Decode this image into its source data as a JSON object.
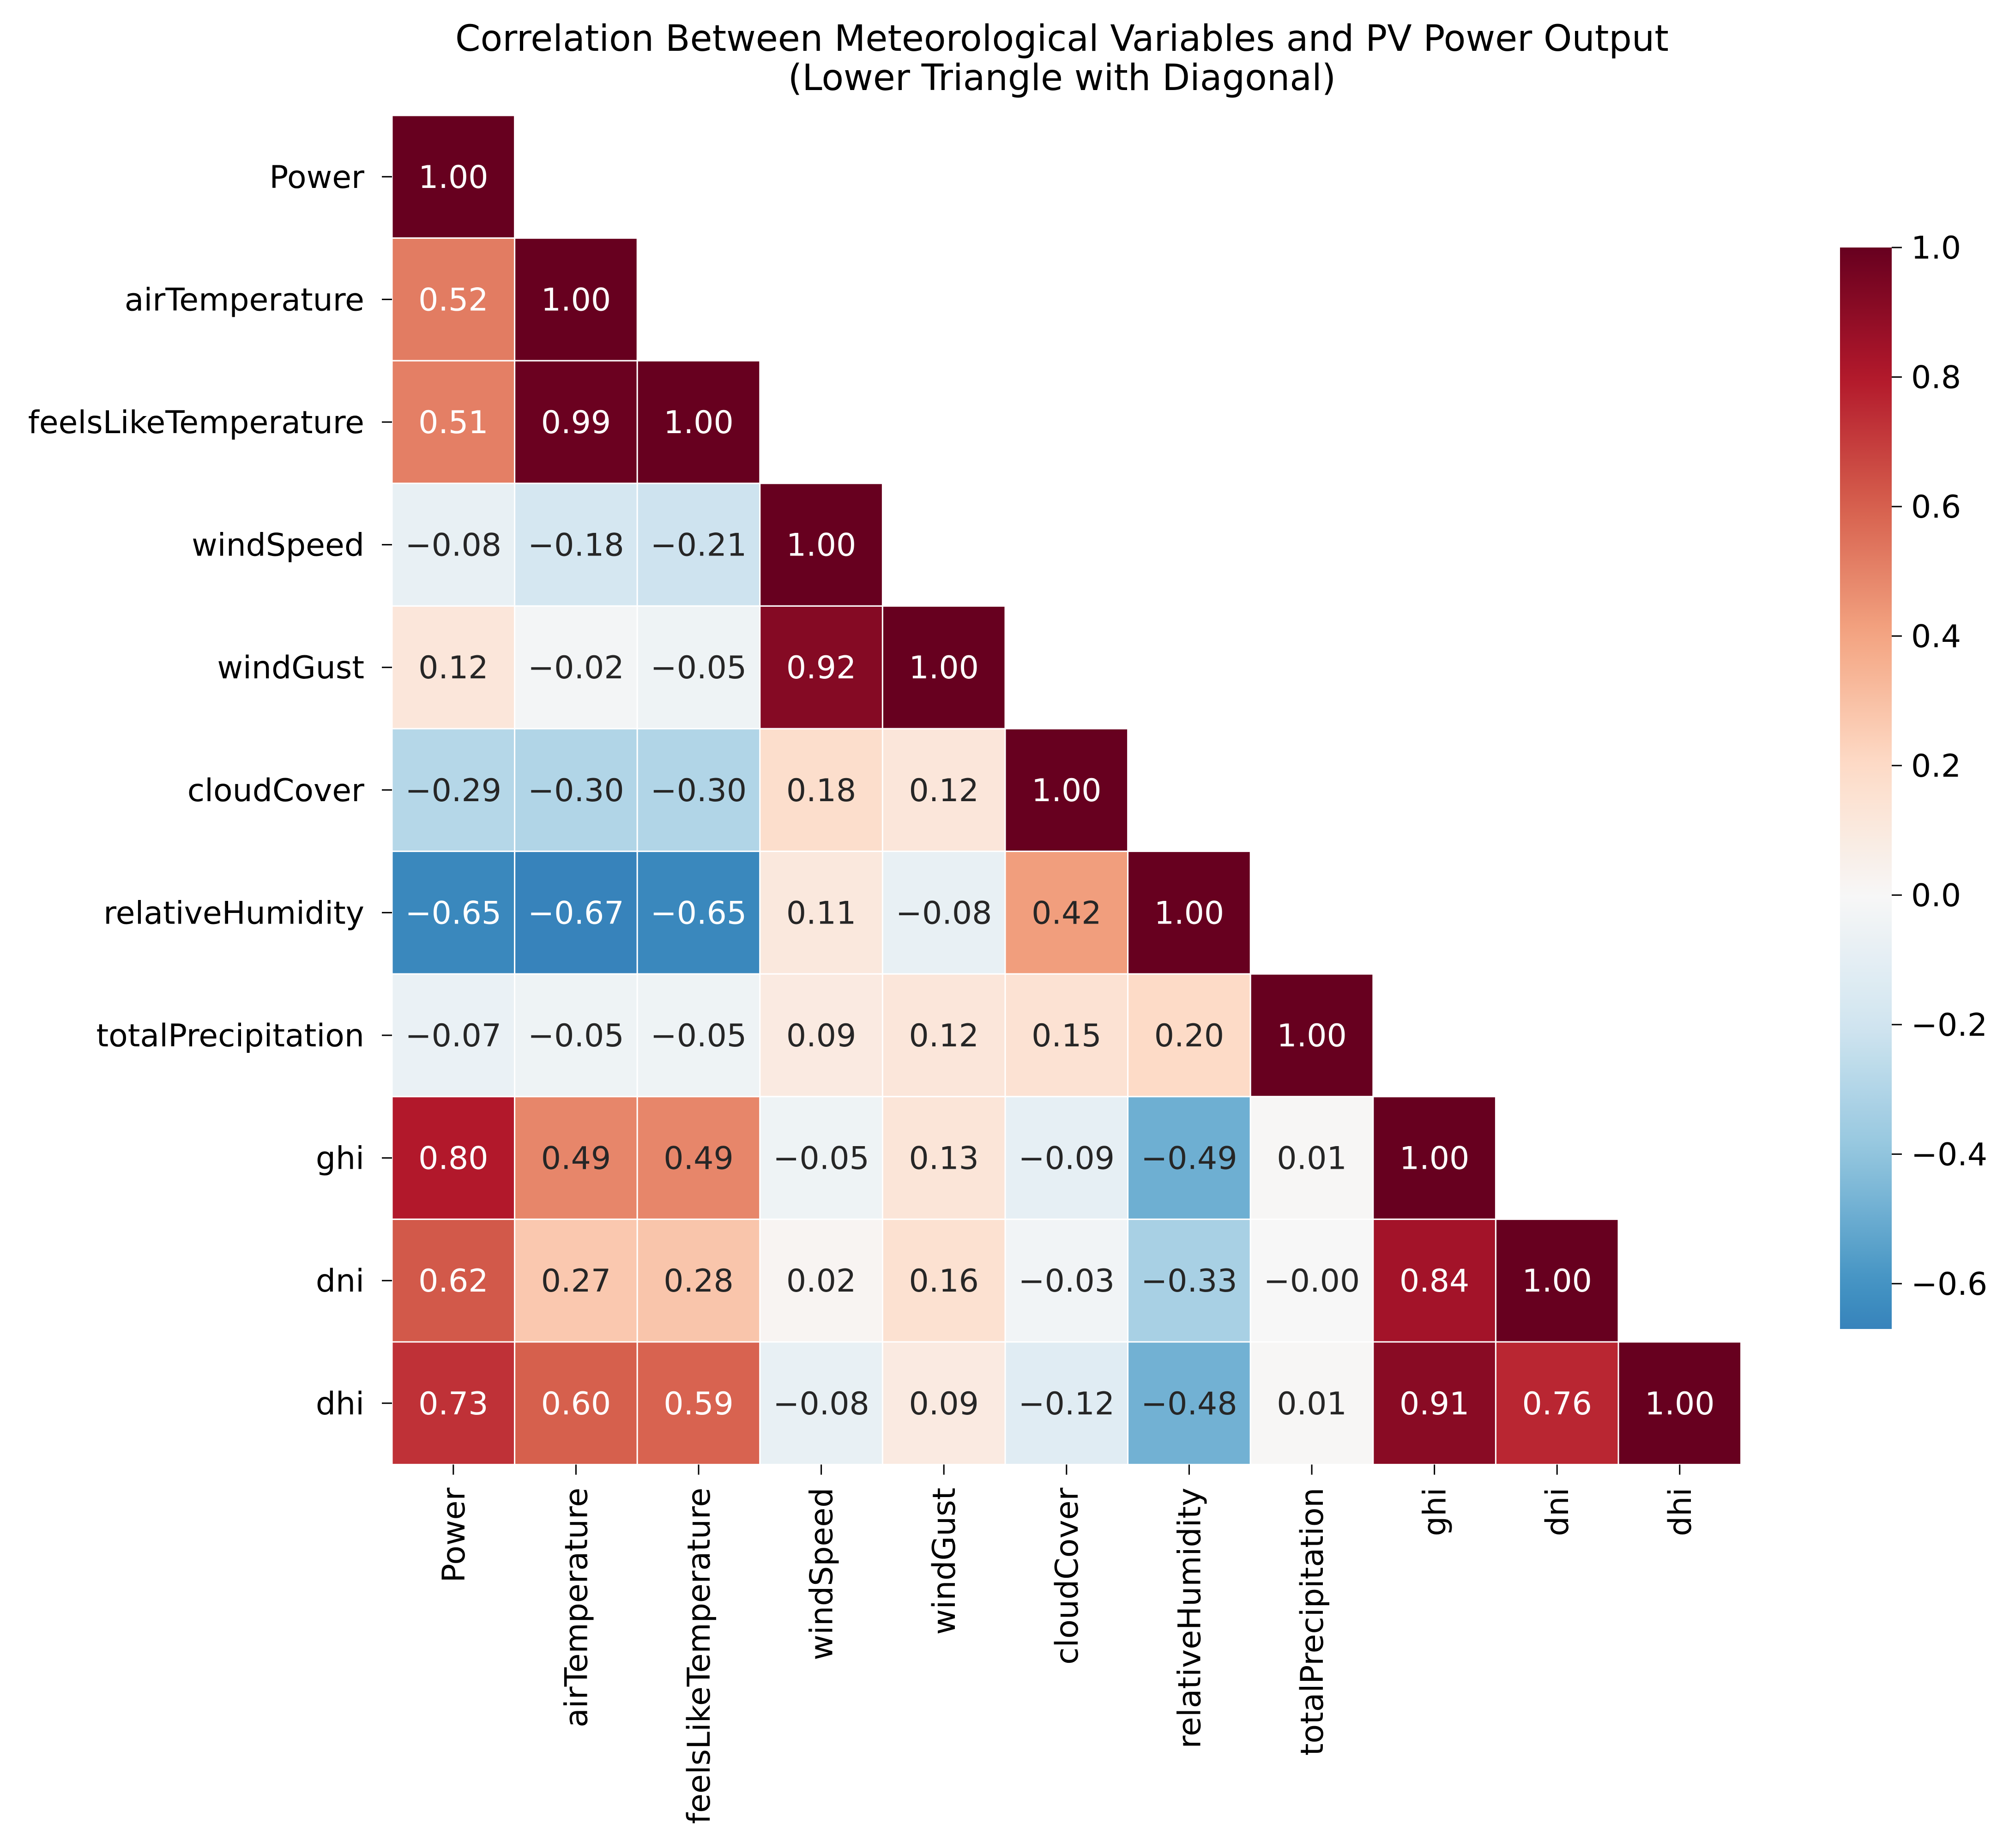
{
  "chart_data": {
    "type": "heatmap",
    "title": "Correlation Between Meteorological Variables and PV Power Output",
    "subtitle": "(Lower Triangle with Diagonal)",
    "variables": [
      "Power",
      "airTemperature",
      "feelsLikeTemperature",
      "windSpeed",
      "windGust",
      "cloudCover",
      "relativeHumidity",
      "totalPrecipitation",
      "ghi",
      "dni",
      "dhi"
    ],
    "matrix": [
      [
        1.0
      ],
      [
        0.52,
        1.0
      ],
      [
        0.51,
        0.99,
        1.0
      ],
      [
        -0.08,
        -0.18,
        -0.21,
        1.0
      ],
      [
        0.12,
        -0.02,
        -0.05,
        0.92,
        1.0
      ],
      [
        -0.29,
        -0.3,
        -0.3,
        0.18,
        0.12,
        1.0
      ],
      [
        -0.65,
        -0.67,
        -0.65,
        0.11,
        -0.08,
        0.42,
        1.0
      ],
      [
        -0.07,
        -0.05,
        -0.05,
        0.09,
        0.12,
        0.15,
        0.2,
        1.0
      ],
      [
        0.8,
        0.49,
        0.49,
        -0.05,
        0.13,
        -0.09,
        -0.49,
        0.01,
        1.0
      ],
      [
        0.62,
        0.27,
        0.28,
        0.02,
        0.16,
        -0.03,
        -0.33,
        -0.0,
        0.84,
        1.0
      ],
      [
        0.73,
        0.6,
        0.59,
        -0.08,
        0.09,
        -0.12,
        -0.48,
        0.01,
        0.91,
        0.76,
        1.0
      ]
    ],
    "value_format": "2 decimals",
    "colormap": "RdBu_r",
    "colorbar": {
      "range": [
        -0.67,
        1.0
      ],
      "ticks": [
        1.0,
        0.8,
        0.6,
        0.4,
        0.2,
        0.0,
        -0.2,
        -0.4,
        -0.6
      ],
      "tick_labels": [
        "1.0",
        "0.8",
        "0.6",
        "0.4",
        "0.2",
        "0.0",
        "−0.2",
        "−0.4",
        "−0.6"
      ]
    },
    "xlabel": "",
    "ylabel": "",
    "grid": false
  }
}
